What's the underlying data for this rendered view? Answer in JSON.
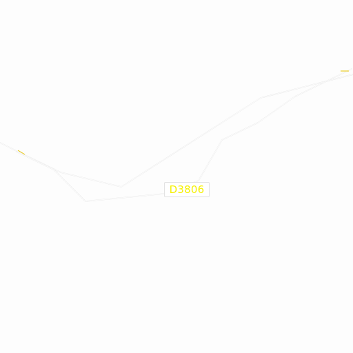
{
  "map": {
    "background_color": "#fdfdfd",
    "road_casing_color": "#e6e6e6",
    "road_label": {
      "text": "D3806",
      "text_color": "#f5f000"
    },
    "end_marker_color": "#e8c400"
  }
}
